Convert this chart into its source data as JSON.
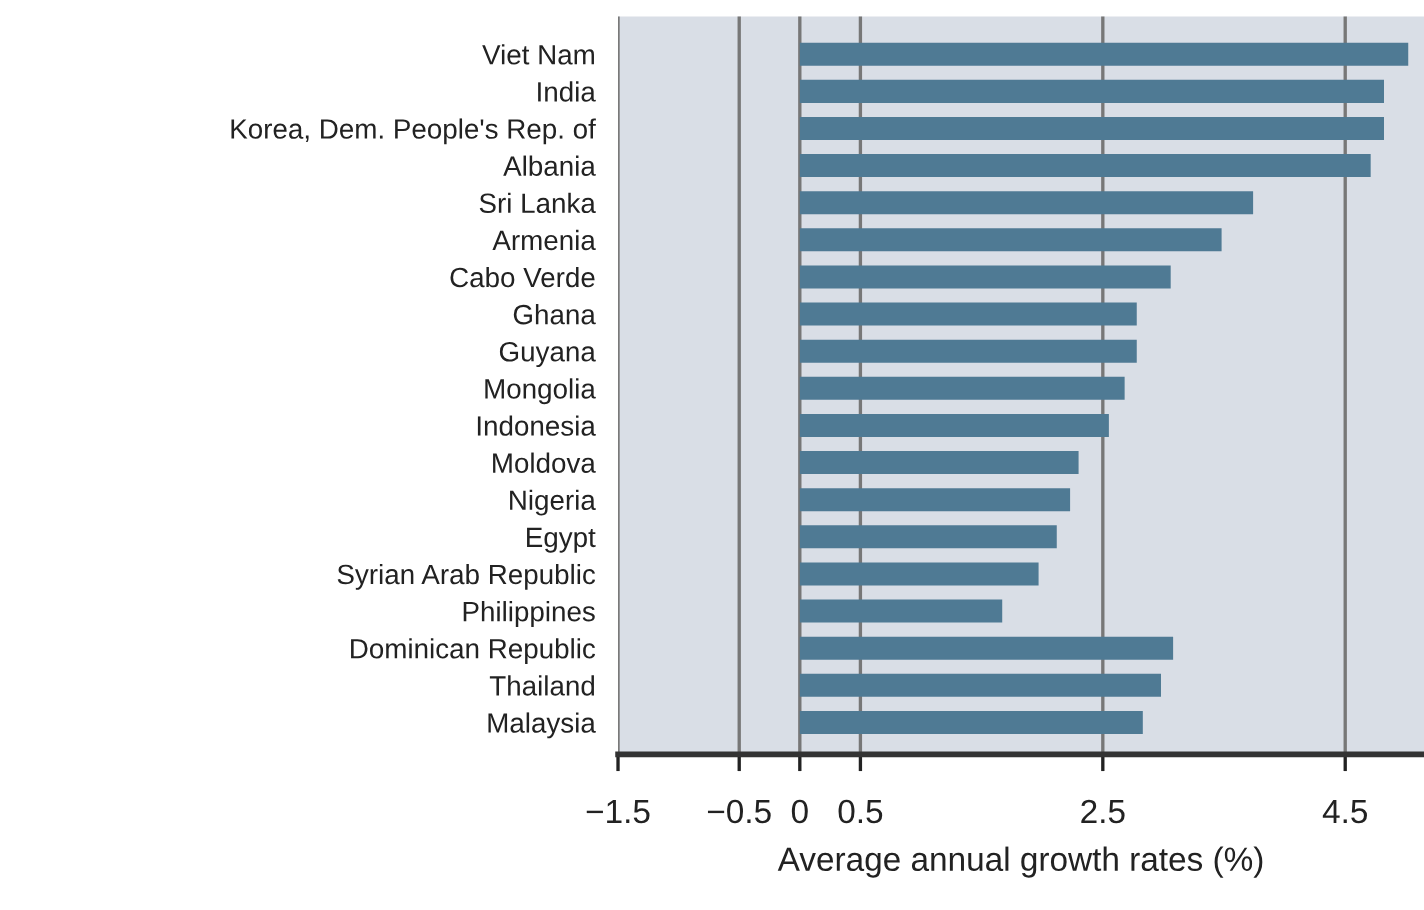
{
  "chart_data": {
    "type": "bar",
    "orientation": "horizontal",
    "xlabel": "Average annual growth rates (%)",
    "categories": [
      "Viet Nam",
      "India",
      "Korea, Dem. People's Rep. of",
      "Albania",
      "Sri Lanka",
      "Armenia",
      "Cabo Verde",
      "Ghana",
      "Guyana",
      "Mongolia",
      "Indonesia",
      "Moldova",
      "Nigeria",
      "Egypt",
      "Syrian Arab Republic",
      "Philippines",
      "Dominican Republic",
      "Thailand",
      "Malaysia"
    ],
    "values": [
      5.02,
      4.82,
      4.82,
      4.71,
      3.74,
      3.48,
      3.06,
      2.78,
      2.78,
      2.68,
      2.55,
      2.3,
      2.23,
      2.12,
      1.97,
      1.67,
      3.08,
      2.98,
      2.83
    ],
    "color": "#4f7a94",
    "xlim": [
      -1.5,
      5.15
    ],
    "xticks": [
      {
        "value": -1.5,
        "label": "−1.5"
      },
      {
        "value": -0.5,
        "label": "−0.5"
      },
      0,
      0.5,
      2.5,
      4.5
    ],
    "grid": "x"
  }
}
